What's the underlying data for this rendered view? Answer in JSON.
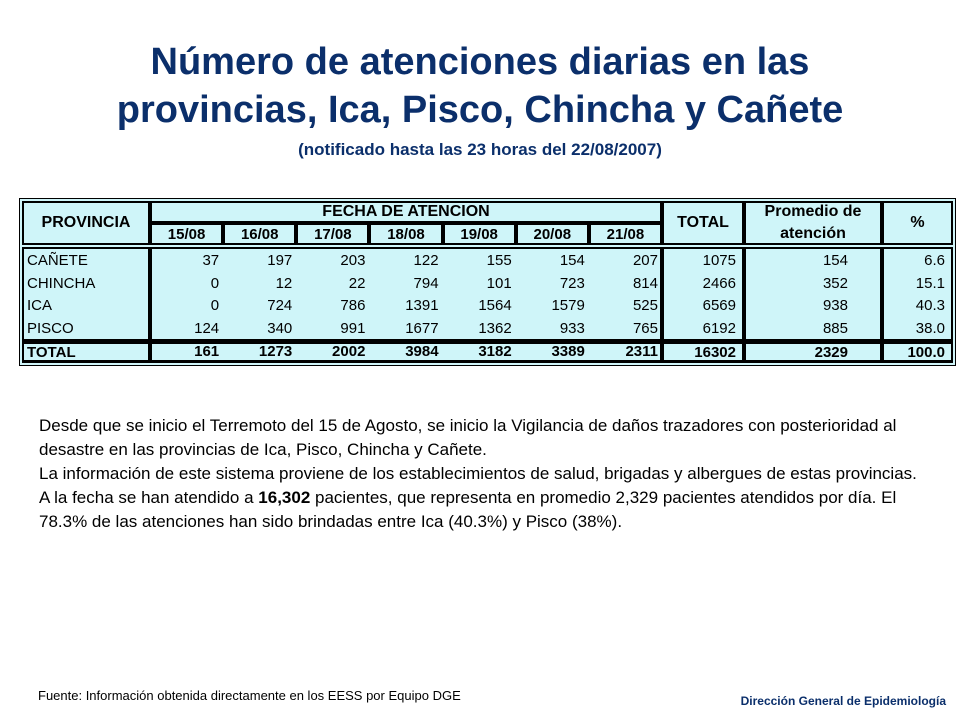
{
  "title_line1": "Número de atenciones diarias en las",
  "title_line2": "provincias, Ica, Pisco, Chincha y Cañete",
  "subtitle": "(notificado hasta las 23 horas del 22/08/2007)",
  "table": {
    "h_province": "PROVINCIA",
    "h_fecha": "FECHA DE ATENCION",
    "h_total": "TOTAL",
    "h_promedio": "Promedio de atención",
    "h_percent": "%",
    "dates": [
      "15/08",
      "16/08",
      "17/08",
      "18/08",
      "19/08",
      "20/08",
      "21/08"
    ],
    "rows": [
      {
        "name": "CAÑETE",
        "values": [
          "37",
          "197",
          "203",
          "122",
          "155",
          "154",
          "207"
        ],
        "total": "1075",
        "avg": "154",
        "pct": "6.6"
      },
      {
        "name": "CHINCHA",
        "values": [
          "0",
          "12",
          "22",
          "794",
          "101",
          "723",
          "814"
        ],
        "total": "2466",
        "avg": "352",
        "pct": "15.1"
      },
      {
        "name": "ICA",
        "values": [
          "0",
          "724",
          "786",
          "1391",
          "1564",
          "1579",
          "525"
        ],
        "total": "6569",
        "avg": "938",
        "pct": "40.3"
      },
      {
        "name": "PISCO",
        "values": [
          "124",
          "340",
          "991",
          "1677",
          "1362",
          "933",
          "765"
        ],
        "total": "6192",
        "avg": "885",
        "pct": "38.0"
      }
    ],
    "total_row": {
      "name": "TOTAL",
      "values": [
        "161",
        "1273",
        "2002",
        "3984",
        "3182",
        "3389",
        "2311"
      ],
      "total": "16302",
      "avg": "2329",
      "pct": "100.0"
    }
  },
  "para1": "Desde que se inicio el Terremoto del 15 de Agosto, se inicio la Vigilancia de daños trazadores con posterioridad al desastre en las provincias de Ica, Pisco, Chincha y Cañete.",
  "para2": "La información de este sistema proviene de los establecimientos de salud, brigadas y albergues de estas provincias.",
  "para3_a": "A la fecha se han atendido a ",
  "para3_bold": "16,302",
  "para3_b": " pacientes, que representa en promedio 2,329 pacientes atendidos por día. El 78.3% de las atenciones han sido brindadas entre Ica (40.3%) y Pisco (38%).",
  "source": "Fuente: Información obtenida directamente en los EESS por Equipo DGE",
  "department": "Dirección General de Epidemiología"
}
